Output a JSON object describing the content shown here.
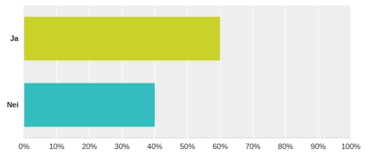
{
  "chart_data": {
    "type": "bar",
    "orientation": "horizontal",
    "categories": [
      "Ja",
      "Nei"
    ],
    "values": [
      60,
      40
    ],
    "colors": [
      "#c9d22a",
      "#35bdbd"
    ],
    "xlim": [
      0,
      100
    ],
    "xticks": [
      {
        "value": 0,
        "label": "0%"
      },
      {
        "value": 10,
        "label": "10%"
      },
      {
        "value": 20,
        "label": "20%"
      },
      {
        "value": 30,
        "label": "30%"
      },
      {
        "value": 40,
        "label": "40%"
      },
      {
        "value": 50,
        "label": "50%"
      },
      {
        "value": 60,
        "label": "60%"
      },
      {
        "value": 70,
        "label": "70%"
      },
      {
        "value": 80,
        "label": "80%"
      },
      {
        "value": 90,
        "label": "90%"
      },
      {
        "value": 100,
        "label": "100%"
      }
    ],
    "grid": true
  }
}
